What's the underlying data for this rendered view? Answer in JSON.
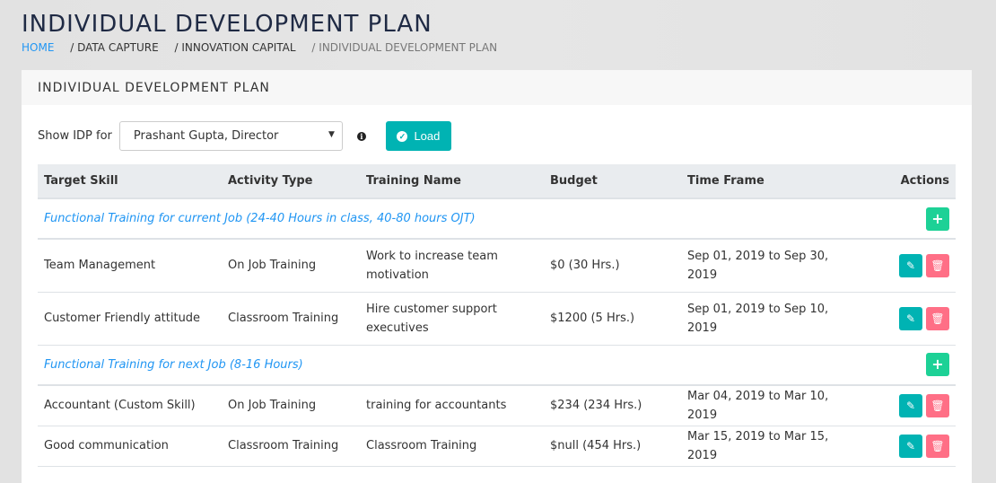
{
  "page": {
    "title": "INDIVIDUAL DEVELOPMENT PLAN"
  },
  "breadcrumb": [
    "HOME",
    "/ DATA CAPTURE",
    "/ INNOVATION CAPITAL",
    "/ INDIVIDUAL DEVELOPMENT PLAN"
  ],
  "card": {
    "title": "INDIVIDUAL DEVELOPMENT PLAN"
  },
  "filter": {
    "label": "Show IDP for",
    "selected": "Prashant Gupta, Director",
    "load_label": "Load"
  },
  "table": {
    "headers": [
      "Target Skill",
      "Activity Type",
      "Training Name",
      "Budget",
      "Time Frame",
      "Actions"
    ],
    "sections": [
      {
        "title": "Functional Training for current Job (24-40 Hours in class, 40-80 hours OJT)",
        "rows": [
          [
            "Team Management",
            "On Job Training",
            "Work to increase team motivation",
            "$0 (30 Hrs.)",
            "Sep 01, 2019 to Sep 30, 2019"
          ],
          [
            "Customer Friendly attitude",
            "Classroom Training",
            "Hire customer support executives",
            "$1200 (5 Hrs.)",
            "Sep 01, 2019 to Sep 10, 2019"
          ]
        ]
      },
      {
        "title": "Functional Training for next Job (8-16 Hours)",
        "rows": [
          [
            "Accountant (Custom Skill)",
            "On Job Training",
            "training for accountants",
            "$234 (234 Hrs.)",
            "Mar 04, 2019 to Mar 10, 2019"
          ],
          [
            "Good communication",
            "Classroom Training",
            "Classroom Training",
            "$null (454 Hrs.)",
            "Mar 15, 2019 to Mar 15, 2019"
          ]
        ]
      }
    ]
  },
  "colors": {
    "accent": "#00b3b3",
    "add": "#1dd196",
    "delete": "#ff6f86",
    "link": "#2196f3"
  }
}
